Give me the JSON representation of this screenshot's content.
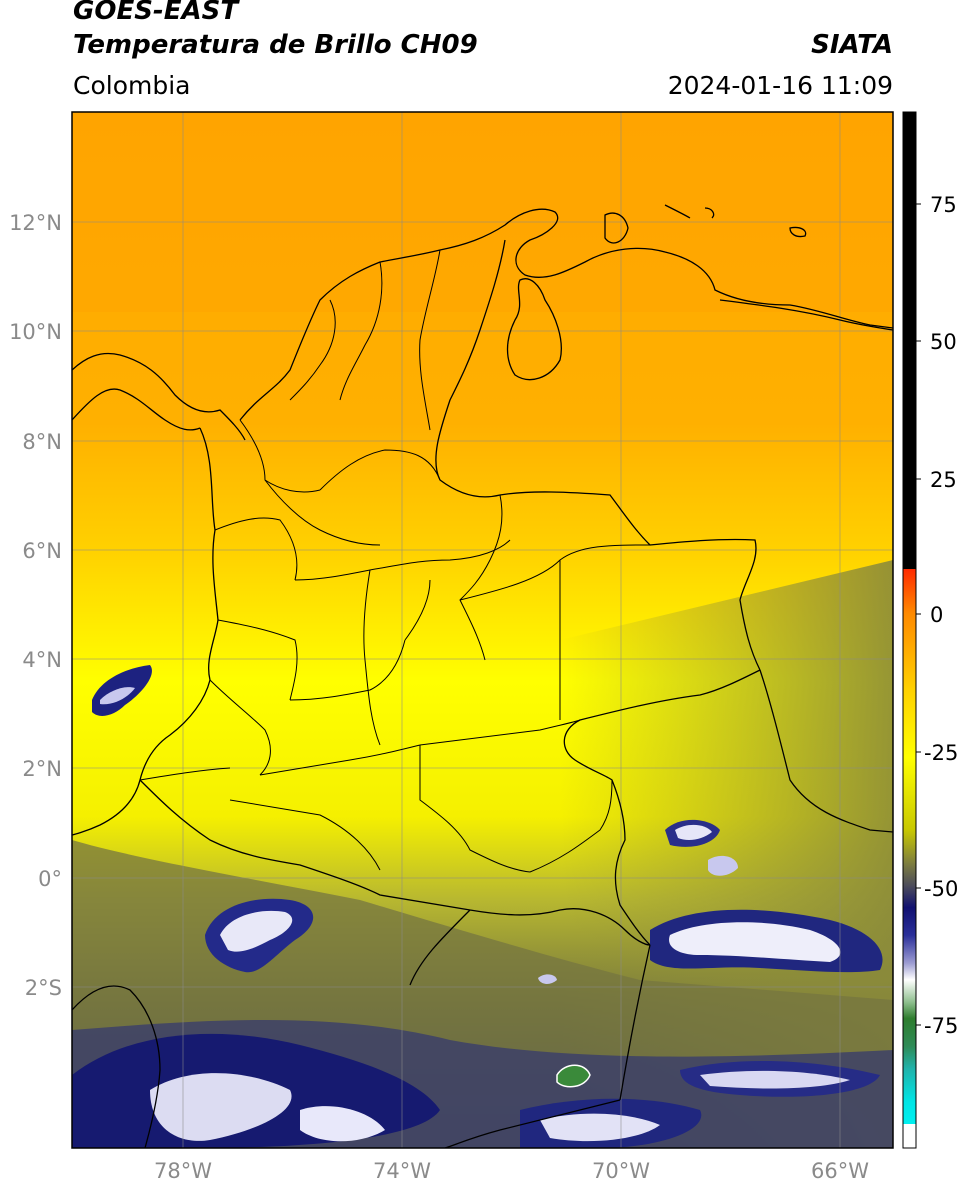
{
  "header": {
    "satellite": "GOES-EAST",
    "product": "Temperatura de Brillo CH09",
    "source": "SIATA",
    "region": "Colombia",
    "datetime": "2024-01-16 11:09"
  },
  "axes": {
    "lat_labels": [
      "12°N",
      "10°N",
      "8°N",
      "6°N",
      "4°N",
      "2°N",
      "0°",
      "2°S"
    ],
    "lon_labels": [
      "78°W",
      "74°W",
      "70°W",
      "66°W"
    ]
  },
  "colorbar": {
    "ticks": [
      "75",
      "50",
      "25",
      "0",
      "-25",
      "-50",
      "-75"
    ],
    "colors": {
      "black": "#000000",
      "red": "#ff2000",
      "orange": "#ffa500",
      "yellow": "#ffff00",
      "olive": "#8a8a40",
      "navy": "#1a1f7a",
      "white": "#ffffff",
      "green": "#3a8a3a",
      "cyan": "#00e5e5"
    }
  },
  "map": {
    "extent": {
      "lon_min": -80,
      "lon_max": -65,
      "lat_min": -5,
      "lat_max": 14
    }
  }
}
